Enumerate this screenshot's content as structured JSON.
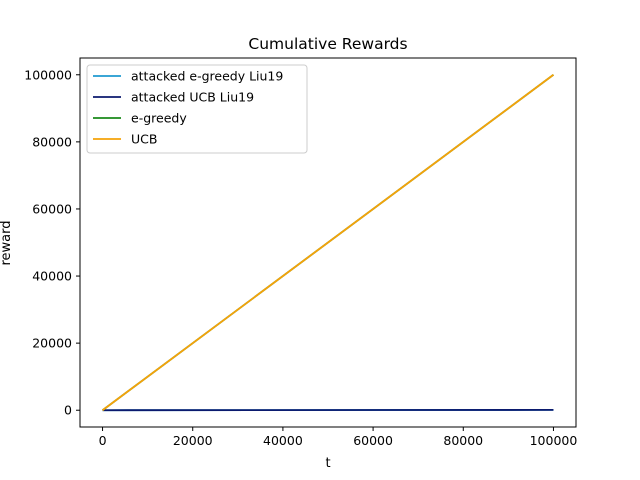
{
  "chart_data": {
    "type": "line",
    "title": "Cumulative Rewards",
    "xlabel": "t",
    "ylabel": "reward",
    "xlim": [
      -5000,
      105000
    ],
    "ylim": [
      -5000,
      105000
    ],
    "xticks": [
      0,
      20000,
      40000,
      60000,
      80000,
      100000
    ],
    "yticks": [
      0,
      20000,
      40000,
      60000,
      80000,
      100000
    ],
    "grid": false,
    "legend_position": "top-left",
    "series": [
      {
        "name": "attacked e-greedy Liu19",
        "color": "#1f9ad1",
        "x": [
          0,
          100000
        ],
        "y": [
          0,
          100
        ]
      },
      {
        "name": "attacked UCB Liu19",
        "color": "#0b1a6e",
        "x": [
          0,
          100000
        ],
        "y": [
          0,
          100
        ]
      },
      {
        "name": "e-greedy",
        "color": "#1a8a1a",
        "x": [
          0,
          100000
        ],
        "y": [
          0,
          100000
        ]
      },
      {
        "name": "UCB",
        "color": "#f5a20a",
        "x": [
          0,
          100000
        ],
        "y": [
          0,
          100000
        ]
      }
    ]
  }
}
